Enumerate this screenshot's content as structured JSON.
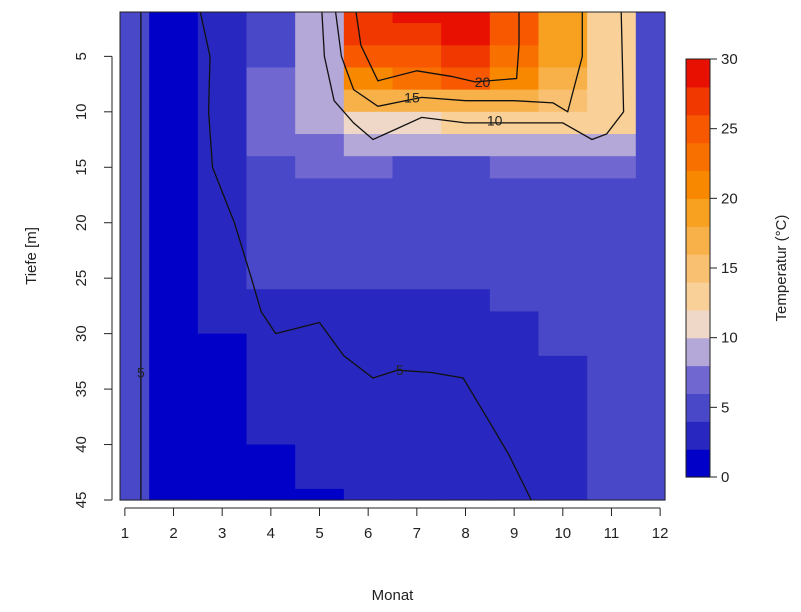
{
  "chart_data": {
    "type": "heatmap",
    "title": "",
    "xlabel": "Monat",
    "ylabel": "Tiefe [m]",
    "colorbar_label": "Temperatur (°C)",
    "x": [
      1,
      2,
      3,
      4,
      5,
      6,
      7,
      8,
      9,
      10,
      11,
      12
    ],
    "xlim": [
      0.9,
      12.1
    ],
    "x_ticks": [
      1,
      2,
      3,
      4,
      5,
      6,
      7,
      8,
      9,
      10,
      11,
      12
    ],
    "y_ticks": [
      5,
      10,
      15,
      20,
      25,
      30,
      35,
      40,
      45
    ],
    "ylim": [
      45,
      1
    ],
    "y_reversed": true,
    "depths": [
      1,
      3,
      5,
      7,
      9,
      11,
      13,
      15,
      17,
      19,
      21,
      23,
      25,
      27,
      29,
      31,
      33,
      35,
      37,
      39,
      41,
      43,
      45
    ],
    "color_range": [
      0,
      30
    ],
    "colorbar_ticks": [
      0,
      5,
      10,
      15,
      20,
      25,
      30
    ],
    "colorbar_levels": [
      {
        "from": 0,
        "to": 2,
        "color": "#0000c8"
      },
      {
        "from": 2,
        "to": 4,
        "color": "#2828c0"
      },
      {
        "from": 4,
        "to": 6,
        "color": "#4848c8"
      },
      {
        "from": 6,
        "to": 8,
        "color": "#7068d0"
      },
      {
        "from": 8,
        "to": 10,
        "color": "#b4a8d8"
      },
      {
        "from": 10,
        "to": 12,
        "color": "#f0d8c8"
      },
      {
        "from": 12,
        "to": 14,
        "color": "#f8d098"
      },
      {
        "from": 14,
        "to": 16,
        "color": "#f8c070"
      },
      {
        "from": 16,
        "to": 18,
        "color": "#f8b048"
      },
      {
        "from": 18,
        "to": 20,
        "color": "#f8a020"
      },
      {
        "from": 20,
        "to": 22,
        "color": "#f88800"
      },
      {
        "from": 22,
        "to": 24,
        "color": "#f87000"
      },
      {
        "from": 24,
        "to": 26,
        "color": "#f85800"
      },
      {
        "from": 26,
        "to": 28,
        "color": "#f03800"
      },
      {
        "from": 28,
        "to": 30,
        "color": "#e81000"
      }
    ],
    "temperature_by_month": [
      {
        "month": 1,
        "values": [
          4.5,
          4.5,
          4.5,
          4.5,
          4.5,
          4.5,
          4.5,
          4.5,
          4.5,
          4.5,
          4.5,
          4.5,
          4.5,
          4.5,
          4.5,
          4.5,
          4.5,
          4.5,
          4.5,
          4.5,
          4.5,
          4.5,
          4.5
        ]
      },
      {
        "month": 2,
        "values": [
          1.5,
          1.5,
          1.5,
          1.5,
          1.5,
          1.5,
          1.5,
          1.5,
          1.5,
          1.5,
          1.5,
          1.5,
          1.5,
          1.5,
          1.5,
          1.5,
          1.5,
          1.5,
          1.5,
          1.5,
          1.5,
          1.5,
          1.5
        ]
      },
      {
        "month": 3,
        "values": [
          3.5,
          3.5,
          3.5,
          3.5,
          3.5,
          3.5,
          3.5,
          3.5,
          3.5,
          3.5,
          3.5,
          3.5,
          3.5,
          3.5,
          3.5,
          1.5,
          1.5,
          1.5,
          1.5,
          1.5,
          1.5,
          1.5,
          1.5
        ]
      },
      {
        "month": 4,
        "values": [
          5.5,
          5.5,
          5.5,
          6.5,
          6.5,
          6.5,
          6.5,
          5.5,
          5.5,
          5.5,
          5.5,
          5.5,
          5.5,
          3.5,
          3.5,
          3.5,
          3.5,
          3.5,
          3.5,
          3.5,
          1.5,
          1.5,
          1.5
        ]
      },
      {
        "month": 5,
        "values": [
          8.5,
          8.5,
          8.5,
          8.5,
          9.5,
          9.5,
          7.5,
          6.5,
          5.5,
          5.5,
          5.5,
          5.5,
          5.5,
          3.5,
          3.5,
          3.5,
          3.5,
          3.5,
          3.5,
          3.5,
          3.5,
          3.5,
          1.5
        ]
      },
      {
        "month": 6,
        "values": [
          26.5,
          26.5,
          24.5,
          21.5,
          16.5,
          11.5,
          9.5,
          7.5,
          5.5,
          5.5,
          5.5,
          5.5,
          5.5,
          3.5,
          3.5,
          3.5,
          3.5,
          3.5,
          3.5,
          3.5,
          3.5,
          3.5,
          3.5
        ]
      },
      {
        "month": 7,
        "values": [
          28.5,
          26.5,
          24.5,
          22.5,
          17.5,
          11.5,
          9.5,
          5.5,
          5.5,
          5.5,
          5.5,
          5.5,
          5.5,
          3.5,
          3.5,
          3.5,
          3.5,
          3.5,
          3.5,
          3.5,
          3.5,
          3.5,
          3.5
        ]
      },
      {
        "month": 8,
        "values": [
          28.5,
          28.5,
          26.5,
          24.5,
          17.5,
          12.5,
          9.5,
          5.5,
          5.5,
          5.5,
          5.5,
          5.5,
          5.5,
          3.5,
          3.5,
          3.5,
          3.5,
          3.5,
          3.5,
          3.5,
          3.5,
          3.5,
          3.5
        ]
      },
      {
        "month": 9,
        "values": [
          24.5,
          24.5,
          22.5,
          21.5,
          17.5,
          12.5,
          9.5,
          6.5,
          5.5,
          5.5,
          5.5,
          5.5,
          5.5,
          5.5,
          3.5,
          3.5,
          3.5,
          3.5,
          3.5,
          3.5,
          3.5,
          3.5,
          3.5
        ]
      },
      {
        "month": 10,
        "values": [
          19.5,
          19.5,
          19.5,
          17.5,
          15.5,
          12.5,
          9.5,
          6.5,
          5.5,
          5.5,
          5.5,
          5.5,
          5.5,
          5.5,
          5.5,
          5.5,
          3.5,
          3.5,
          3.5,
          3.5,
          3.5,
          3.5,
          3.5
        ]
      },
      {
        "month": 11,
        "values": [
          13.5,
          13.5,
          13.5,
          12.5,
          12.5,
          12.5,
          8.5,
          7.5,
          5.5,
          5.5,
          5.5,
          5.5,
          5.5,
          5.5,
          5.5,
          5.5,
          5.5,
          5.5,
          5.5,
          5.5,
          5.5,
          5.5,
          5.5
        ]
      },
      {
        "month": 12,
        "values": [
          5.5,
          5.5,
          5.5,
          5.5,
          5.5,
          5.5,
          5.5,
          5.5,
          5.5,
          5.5,
          5.5,
          5.5,
          5.5,
          5.5,
          5.5,
          5.5,
          5.5,
          5.5,
          5.5,
          5.5,
          5.5,
          5.5,
          5.5
        ]
      }
    ],
    "contours": [
      {
        "level": 5,
        "label": "5",
        "points": [
          [
            1.33,
            1
          ],
          [
            1.33,
            45
          ]
        ],
        "label_at": [
          1.33,
          33.5
        ]
      },
      {
        "level": 5,
        "label": "5",
        "points": [
          [
            2.55,
            1
          ],
          [
            2.75,
            5
          ],
          [
            2.72,
            10
          ],
          [
            2.8,
            15
          ],
          [
            3.25,
            20
          ],
          [
            3.6,
            25
          ],
          [
            3.8,
            28
          ],
          [
            4.1,
            30
          ],
          [
            5,
            29
          ],
          [
            5.5,
            32
          ],
          [
            6.1,
            34
          ],
          [
            6.6,
            33.3
          ],
          [
            7.3,
            33.5
          ],
          [
            7.95,
            34
          ],
          [
            8.5,
            38
          ],
          [
            8.9,
            41
          ],
          [
            9.35,
            45
          ]
        ],
        "label_at": [
          6.65,
          33.3
        ]
      },
      {
        "level": 10,
        "label": "10",
        "points": [
          [
            5.05,
            1
          ],
          [
            5.1,
            5
          ],
          [
            5.3,
            9
          ],
          [
            5.7,
            11
          ],
          [
            6.1,
            12.5
          ],
          [
            6.6,
            11.5
          ],
          [
            7.1,
            10.5
          ],
          [
            8,
            11
          ],
          [
            9,
            11
          ],
          [
            10,
            11
          ],
          [
            10.6,
            12.5
          ],
          [
            10.9,
            12
          ],
          [
            11.25,
            10
          ],
          [
            11.2,
            1
          ]
        ],
        "label_at": [
          8.6,
          10.8
        ]
      },
      {
        "level": 15,
        "label": "15",
        "points": [
          [
            5.33,
            1
          ],
          [
            5.45,
            5
          ],
          [
            5.7,
            8
          ],
          [
            6.2,
            9.5
          ],
          [
            7.1,
            8.7
          ],
          [
            8,
            9
          ],
          [
            9,
            9
          ],
          [
            9.8,
            9.2
          ],
          [
            10.1,
            10
          ],
          [
            10.4,
            5
          ],
          [
            10.4,
            1
          ]
        ],
        "label_at": [
          6.9,
          8.7
        ]
      },
      {
        "level": 20,
        "label": "20",
        "points": [
          [
            5.75,
            1
          ],
          [
            5.85,
            4
          ],
          [
            6.2,
            7.2
          ],
          [
            7,
            6.3
          ],
          [
            7.7,
            6.8
          ],
          [
            8.2,
            7.3
          ],
          [
            9.05,
            7
          ],
          [
            9.1,
            4
          ],
          [
            9.1,
            1
          ]
        ],
        "label_at": [
          8.35,
          7.3
        ]
      }
    ]
  }
}
